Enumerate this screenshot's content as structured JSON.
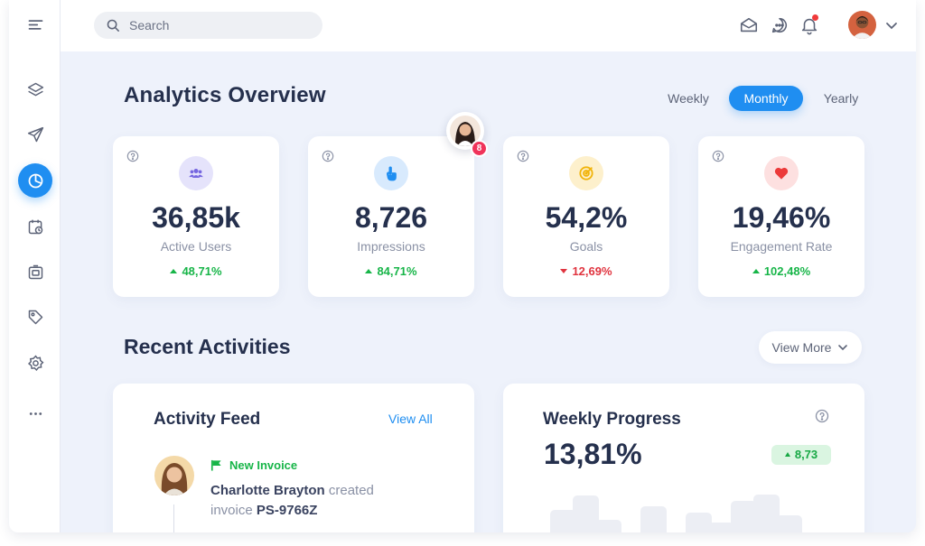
{
  "search": {
    "placeholder": "Search"
  },
  "sidebar": {
    "icons": [
      "menu-icon",
      "layers-icon",
      "send-icon",
      "analytics-icon",
      "calendar-clock-icon",
      "camera-icon",
      "tag-icon",
      "settings-icon",
      "more-icon"
    ],
    "active": "analytics-icon"
  },
  "header": {
    "title": "Analytics Overview"
  },
  "periods": [
    "Weekly",
    "Monthly",
    "Yearly"
  ],
  "active_period": "Monthly",
  "stats": [
    {
      "icon": "users-icon",
      "value": "36,85k",
      "label": "Active Users",
      "change": "48,71%",
      "trend": "up",
      "icon_bg": "#e5e3fb",
      "icon_color": "#7667e0"
    },
    {
      "icon": "tap-icon",
      "value": "8,726",
      "label": "Impressions",
      "change": "84,71%",
      "trend": "up",
      "icon_bg": "#d8eafd",
      "icon_color": "#1f8ef1"
    },
    {
      "icon": "target-icon",
      "value": "54,2%",
      "label": "Goals",
      "change": "12,69%",
      "trend": "down",
      "icon_bg": "#fdf0cc",
      "icon_color": "#f1b40c"
    },
    {
      "icon": "heart-icon",
      "value": "19,46%",
      "label": "Engagement Rate",
      "change": "102,48%",
      "trend": "up",
      "icon_bg": "#fde0e0",
      "icon_color": "#ec3a3a"
    }
  ],
  "notification": {
    "count": "8"
  },
  "recent": {
    "title": "Recent Activities",
    "view_more": "View More"
  },
  "feed": {
    "title": "Activity Feed",
    "view_all": "View All",
    "item": {
      "tag": "New Invoice",
      "name": "Charlotte Brayton",
      "action": "created",
      "object": "invoice",
      "invoice_id": "PS-9766Z"
    }
  },
  "weekly": {
    "title": "Weekly Progress",
    "value": "13,81%",
    "badge": "8,73",
    "bar_levels": [
      0.35,
      0.58,
      0.2,
      0.0,
      0.42,
      0.0,
      0.32,
      0.16,
      0.5,
      0.6,
      0.27
    ]
  },
  "colors": {
    "accent": "#1f8ef1",
    "positive": "#17b548",
    "negative": "#e0343f",
    "background": "#eef2fb"
  }
}
